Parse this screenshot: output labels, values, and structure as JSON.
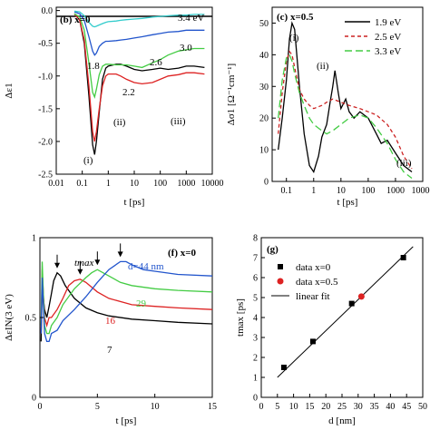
{
  "panels": [
    {
      "panel_label": "(b) x=0",
      "xlabel": "t [ps]",
      "ylabel": "Δε1",
      "annotations": [
        "(i)",
        "(ii)",
        "(iii)",
        "1.8",
        "2.2",
        "2.6",
        "3.0",
        "3.4 eV"
      ]
    },
    {
      "panel_label": "(c) x=0.5",
      "xlabel": "t [ps]",
      "ylabel": "Δσ1 [Ω⁻¹cm⁻¹]",
      "annotations": [
        "(i)",
        "(ii)",
        "(iii)"
      ]
    },
    {
      "panel_label": "(f) x=0",
      "xlabel": "t [ps]",
      "ylabel": "ΔεIN(3 eV)",
      "annotations": [
        "tmax",
        "d=44 nm",
        "29",
        "16",
        "7"
      ]
    },
    {
      "panel_label": "(g)",
      "xlabel": "d [nm]",
      "ylabel": "tmax [ps]",
      "annotations": []
    }
  ],
  "chart_data": [
    {
      "type": "line",
      "panel": "(b)",
      "x_scale": "log",
      "xlim": [
        0.01,
        10000
      ],
      "ylim": [
        -2.5,
        0.05
      ],
      "xticks": [
        "0.01",
        "0.1",
        "1",
        "10",
        "100",
        "1000",
        "10000"
      ],
      "yticks": [
        "0.0",
        "-0.5",
        "-1.0",
        "-1.5",
        "-2.0",
        "-2.5"
      ],
      "series": [
        {
          "name": "1.8",
          "color": "#000000",
          "x": [
            0.05,
            0.08,
            0.12,
            0.18,
            0.25,
            0.3,
            0.35,
            0.45,
            0.6,
            0.8,
            1,
            2,
            3,
            5,
            10,
            20,
            50,
            100,
            200,
            500,
            1000,
            2000,
            5000
          ],
          "y": [
            -0.05,
            -0.15,
            -0.5,
            -1.3,
            -2.05,
            -2.2,
            -2.0,
            -1.55,
            -1.05,
            -0.88,
            -0.85,
            -0.82,
            -0.82,
            -0.85,
            -0.9,
            -0.92,
            -0.9,
            -0.88,
            -0.9,
            -0.88,
            -0.85,
            -0.85,
            -0.87
          ]
        },
        {
          "name": "2.2",
          "color": "#dd2222",
          "x": [
            0.05,
            0.08,
            0.12,
            0.18,
            0.25,
            0.3,
            0.35,
            0.45,
            0.6,
            0.8,
            1,
            2,
            3,
            5,
            10,
            20,
            50,
            100,
            200,
            500,
            1000,
            2000,
            5000
          ],
          "y": [
            -0.05,
            -0.15,
            -0.45,
            -1.15,
            -1.85,
            -2.0,
            -1.85,
            -1.5,
            -1.15,
            -1.0,
            -0.97,
            -0.97,
            -1.0,
            -1.05,
            -1.1,
            -1.12,
            -1.1,
            -1.05,
            -1.0,
            -0.98,
            -0.95,
            -0.95,
            -0.97
          ]
        },
        {
          "name": "2.6",
          "color": "#44cc44",
          "x": [
            0.05,
            0.08,
            0.12,
            0.18,
            0.25,
            0.3,
            0.35,
            0.45,
            0.6,
            0.8,
            1,
            2,
            3,
            5,
            10,
            20,
            50,
            100,
            200,
            500,
            1000,
            2000,
            5000
          ],
          "y": [
            -0.05,
            -0.1,
            -0.3,
            -0.8,
            -1.25,
            -1.32,
            -1.2,
            -0.98,
            -0.85,
            -0.82,
            -0.82,
            -0.83,
            -0.83,
            -0.83,
            -0.85,
            -0.87,
            -0.8,
            -0.75,
            -0.68,
            -0.62,
            -0.6,
            -0.58,
            -0.58
          ]
        },
        {
          "name": "3.0",
          "color": "#2255cc",
          "x": [
            0.05,
            0.08,
            0.12,
            0.18,
            0.25,
            0.3,
            0.35,
            0.45,
            0.6,
            0.8,
            1,
            2,
            3,
            5,
            10,
            20,
            50,
            100,
            200,
            500,
            1000,
            2000,
            5000
          ],
          "y": [
            -0.02,
            -0.05,
            -0.15,
            -0.4,
            -0.62,
            -0.68,
            -0.65,
            -0.55,
            -0.5,
            -0.47,
            -0.47,
            -0.46,
            -0.45,
            -0.44,
            -0.42,
            -0.4,
            -0.37,
            -0.35,
            -0.33,
            -0.32,
            -0.3,
            -0.3,
            -0.3
          ]
        },
        {
          "name": "3.4 eV",
          "color": "#33cccc",
          "x": [
            0.05,
            0.08,
            0.12,
            0.18,
            0.25,
            0.3,
            0.35,
            0.45,
            0.6,
            0.8,
            1,
            2,
            3,
            5,
            10,
            20,
            50,
            100,
            200,
            500,
            1000,
            2000,
            5000
          ],
          "y": [
            -0.01,
            -0.02,
            -0.08,
            -0.18,
            -0.24,
            -0.25,
            -0.24,
            -0.22,
            -0.2,
            -0.18,
            -0.17,
            -0.16,
            -0.15,
            -0.14,
            -0.13,
            -0.12,
            -0.1,
            -0.09,
            -0.08,
            -0.07,
            -0.07,
            -0.06,
            -0.06
          ]
        }
      ]
    },
    {
      "type": "line",
      "panel": "(c)",
      "x_scale": "log",
      "xlim": [
        0.03,
        10000
      ],
      "ylim": [
        0,
        55
      ],
      "xticks": [
        "0.1",
        "1",
        "10",
        "100",
        "1000",
        "10000"
      ],
      "yticks": [
        "0",
        "10",
        "20",
        "30",
        "40",
        "50"
      ],
      "legend": "top-right",
      "series": [
        {
          "name": "1.9 eV",
          "color": "#000000",
          "dash": "solid",
          "x": [
            0.05,
            0.07,
            0.1,
            0.13,
            0.16,
            0.2,
            0.3,
            0.45,
            0.7,
            1,
            1.5,
            2,
            3,
            4,
            5,
            6,
            8,
            10,
            15,
            20,
            30,
            50,
            100,
            200,
            300,
            500,
            1000,
            2000,
            4000
          ],
          "y": [
            10,
            20,
            32,
            45,
            50,
            48,
            30,
            15,
            5,
            3,
            8,
            14,
            18,
            25,
            30,
            35,
            28,
            23,
            26,
            22,
            20,
            22,
            20,
            15,
            12,
            13,
            9,
            5,
            3
          ]
        },
        {
          "name": "2.5 eV",
          "color": "#cc2222",
          "dash": "4,3",
          "x": [
            0.05,
            0.07,
            0.1,
            0.13,
            0.16,
            0.2,
            0.3,
            0.45,
            0.7,
            1,
            2,
            3,
            5,
            10,
            20,
            50,
            100,
            200,
            500,
            1000,
            2000,
            4000
          ],
          "y": [
            15,
            28,
            38,
            41,
            40,
            36,
            29,
            26,
            24,
            23,
            24,
            25,
            26,
            25,
            24,
            23,
            22,
            21,
            18,
            14,
            8,
            4
          ]
        },
        {
          "name": "3.3 eV",
          "color": "#44cc44",
          "dash": "8,4",
          "x": [
            0.05,
            0.07,
            0.1,
            0.13,
            0.16,
            0.2,
            0.3,
            0.45,
            0.7,
            1,
            2,
            3,
            5,
            10,
            20,
            50,
            100,
            200,
            500,
            1000,
            2000,
            4000
          ],
          "y": [
            20,
            32,
            39,
            40,
            38,
            34,
            28,
            24,
            20,
            18,
            16,
            15,
            16,
            18,
            20,
            21,
            20,
            17,
            12,
            7,
            3,
            1
          ]
        }
      ]
    },
    {
      "type": "line",
      "panel": "(f)",
      "xlim": [
        0,
        15
      ],
      "ylim": [
        0,
        1.0
      ],
      "xticks": [
        "0",
        "5",
        "10",
        "15"
      ],
      "yticks": [
        "0",
        "0.5",
        "1"
      ],
      "series": [
        {
          "name": "7",
          "color": "#000000",
          "x": [
            0.1,
            0.2,
            0.4,
            0.6,
            0.8,
            1,
            1.2,
            1.5,
            1.8,
            2.2,
            3,
            4,
            5,
            6,
            8,
            10,
            12,
            15
          ],
          "y": [
            0.35,
            0.7,
            0.55,
            0.5,
            0.57,
            0.65,
            0.73,
            0.78,
            0.76,
            0.7,
            0.62,
            0.56,
            0.53,
            0.51,
            0.49,
            0.48,
            0.47,
            0.46
          ]
        },
        {
          "name": "16",
          "color": "#dd2222",
          "x": [
            0.1,
            0.2,
            0.4,
            0.6,
            0.8,
            1,
            1.5,
            2,
            2.5,
            3,
            3.5,
            4,
            5,
            6,
            8,
            10,
            12,
            15
          ],
          "y": [
            0.4,
            0.8,
            0.5,
            0.45,
            0.5,
            0.5,
            0.55,
            0.62,
            0.7,
            0.73,
            0.74,
            0.72,
            0.66,
            0.62,
            0.58,
            0.57,
            0.56,
            0.55
          ]
        },
        {
          "name": "29",
          "color": "#44cc44",
          "x": [
            0.1,
            0.2,
            0.4,
            0.6,
            0.8,
            1,
            1.5,
            2,
            3,
            4,
            4.5,
            5,
            6,
            7,
            8,
            10,
            12,
            15
          ],
          "y": [
            0.45,
            0.85,
            0.45,
            0.4,
            0.4,
            0.45,
            0.5,
            0.58,
            0.68,
            0.75,
            0.78,
            0.8,
            0.76,
            0.72,
            0.7,
            0.68,
            0.67,
            0.66
          ]
        },
        {
          "name": "d=44 nm",
          "color": "#2255cc",
          "x": [
            0.1,
            0.2,
            0.4,
            0.6,
            0.8,
            1,
            1.5,
            2,
            3,
            4,
            5,
            6,
            7,
            7.5,
            8,
            9,
            10,
            12,
            15
          ],
          "y": [
            0.4,
            0.75,
            0.4,
            0.35,
            0.35,
            0.4,
            0.42,
            0.48,
            0.55,
            0.63,
            0.72,
            0.8,
            0.85,
            0.85,
            0.83,
            0.8,
            0.79,
            0.77,
            0.76
          ]
        }
      ]
    },
    {
      "type": "scatter",
      "panel": "(g)",
      "xlim": [
        0,
        50
      ],
      "ylim": [
        0,
        8
      ],
      "xticks": [
        "0",
        "5",
        "10",
        "15",
        "20",
        "25",
        "30",
        "35",
        "40",
        "45",
        "50"
      ],
      "yticks": [
        "0",
        "1",
        "2",
        "3",
        "4",
        "5",
        "6",
        "7",
        "8"
      ],
      "legend": "top-left",
      "series": [
        {
          "name": "data x=0",
          "color": "#000000",
          "marker": "square",
          "x": [
            7,
            16,
            28,
            44
          ],
          "y": [
            1.5,
            2.8,
            4.7,
            7.0
          ]
        },
        {
          "name": "data x=0.5",
          "color": "#dd2222",
          "marker": "circle",
          "x": [
            31
          ],
          "y": [
            5.05
          ]
        },
        {
          "name": "linear fit",
          "color": "#000000",
          "marker": "line",
          "x": [
            5,
            47
          ],
          "y": [
            1.0,
            7.55
          ]
        }
      ]
    }
  ]
}
